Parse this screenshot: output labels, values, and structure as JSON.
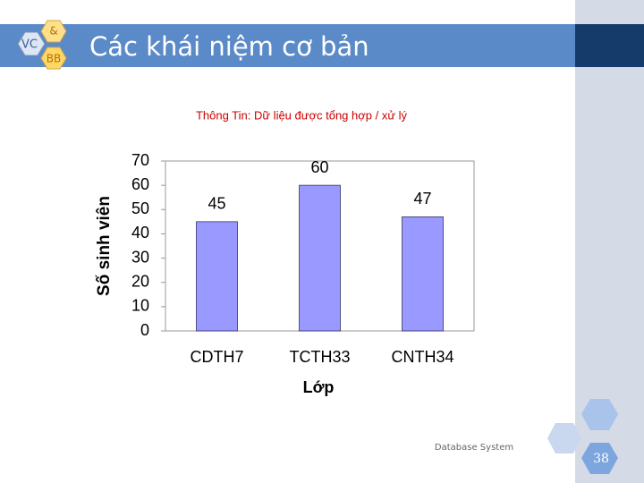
{
  "slide": {
    "logo": [
      "VC",
      "&",
      "BB"
    ],
    "title": "Các khái niệm cơ bản",
    "footer": "Database System",
    "page_number": "38"
  },
  "chart_data": {
    "type": "bar",
    "title": "Thông Tin: Dữ liệu được tổng hợp / xử lý",
    "x_label": "Lớp",
    "y_label": "Số sinh viên",
    "categories": [
      "CDTH7",
      "TCTH33",
      "CNTH34"
    ],
    "values": [
      45,
      60,
      47
    ],
    "color": "#9999ff",
    "ylim": [
      0,
      70
    ],
    "yticks": [
      0,
      10,
      20,
      30,
      40,
      50,
      60,
      70
    ],
    "grid": false
  }
}
